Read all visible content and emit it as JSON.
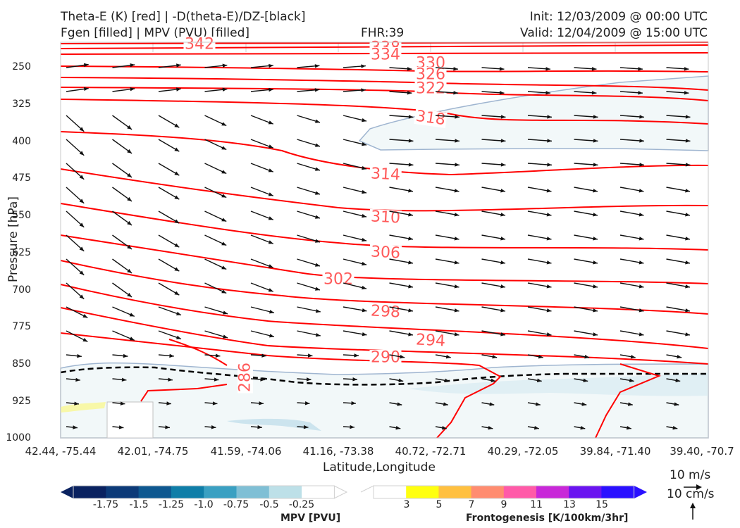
{
  "header": {
    "title_left_1": "Theta-E (K) [red] | -D(theta-E)/DZ-[black]",
    "title_left_2": "Fgen [filled] | MPV (PVU) [filled]",
    "fhr": "FHR:39",
    "init": "Init: 12/03/2009 @ 00:00 UTC",
    "valid": "Valid: 12/04/2009 @ 15:00 UTC"
  },
  "chart_data": {
    "type": "cross-section",
    "xlabel": "Latitude,Longitude",
    "ylabel": "Pressure [hPa]",
    "ylim": [
      1000,
      175
    ],
    "y_ticks": [
      "250",
      "325",
      "400",
      "475",
      "550",
      "625",
      "700",
      "775",
      "850",
      "925",
      "1000"
    ],
    "x_ticks": [
      "42.44, -75.44",
      "42.01, -74.75",
      "41.59, -74.06",
      "41.16, -73.38",
      "40.72, -72.71",
      "40.29, -72.05",
      "39.84, -71.40",
      "39.40, -70.7"
    ],
    "theta_e_contour_labels": [
      "342",
      "338",
      "334",
      "330",
      "326",
      "322",
      "318",
      "314",
      "310",
      "306",
      "302",
      "298",
      "294",
      "290",
      "286"
    ],
    "wind_reference": {
      "speed_label": "10 m/s",
      "vertical_label": "10 cm/s"
    },
    "colors": {
      "theta_e": "#ff0000",
      "theta_e_label": "#ff5a5a",
      "mpv_fill": "#f2f8f9",
      "grid": "#d0d0d0"
    }
  },
  "colorbars": {
    "mpv": {
      "title": "MPV [PVU]",
      "labels": [
        "-1.75",
        "-1.5",
        "-1.25",
        "-1.0",
        "-0.75",
        "-0.5",
        "-0.25"
      ],
      "colors": [
        "#0a2260",
        "#0c3a78",
        "#0e5890",
        "#0f7ea8",
        "#3aa0c2",
        "#7fbfd5",
        "#bde0e8",
        "#ffffff"
      ]
    },
    "fgen": {
      "title": "Frontogenesis [K/100km/3hr]",
      "labels": [
        "3",
        "5",
        "7",
        "9",
        "11",
        "13",
        "15"
      ],
      "colors": [
        "#ffffff",
        "#ffff10",
        "#ffc040",
        "#ff8c70",
        "#ff5aa8",
        "#c828d8",
        "#6a14f0",
        "#2a10ff"
      ]
    }
  }
}
